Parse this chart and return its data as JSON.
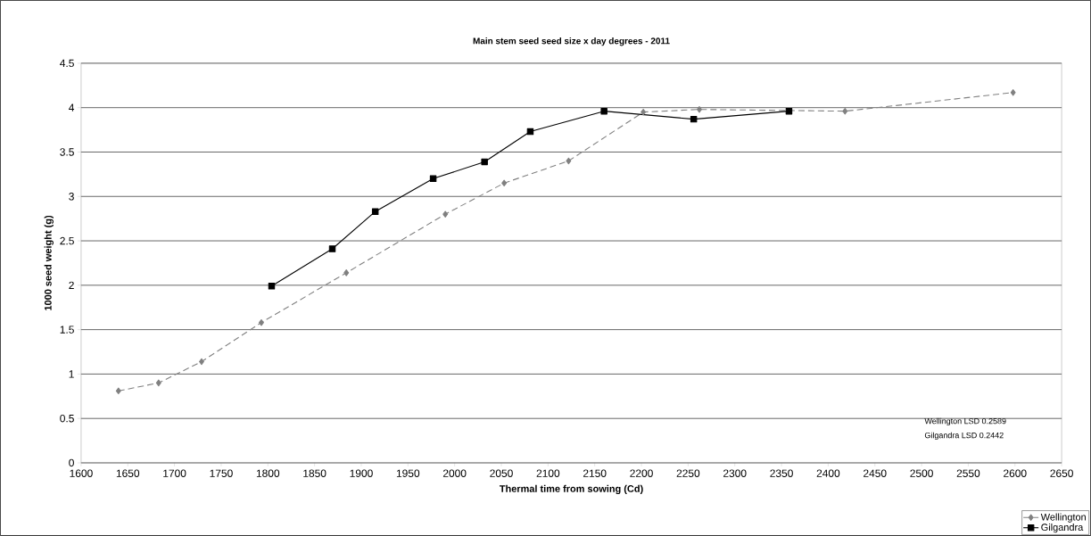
{
  "chart_data": {
    "type": "line",
    "title": "Main stem seed seed size x day degrees - 2011",
    "xlabel": "Thermal time from sowing (Cd)",
    "ylabel": "1000 seed weight (g)",
    "series": [
      {
        "name": "Wellington",
        "color": "#808080",
        "marker": "diamond",
        "line_style": "dashed",
        "x": [
          1640,
          1683,
          1729,
          1793,
          1884,
          1990,
          2053,
          2122,
          2202,
          2262,
          2418,
          2598
        ],
        "values": [
          0.81,
          0.9,
          1.14,
          1.58,
          2.14,
          2.8,
          3.15,
          3.4,
          3.95,
          3.98,
          3.96,
          4.17
        ]
      },
      {
        "name": "Gilgandra",
        "color": "#000000",
        "marker": "square",
        "line_style": "solid",
        "x": [
          1804,
          1869,
          1915,
          1977,
          2032,
          2081,
          2160,
          2256,
          2358
        ],
        "values": [
          1.99,
          2.41,
          2.83,
          3.2,
          3.39,
          3.73,
          3.96,
          3.87,
          3.96
        ]
      }
    ],
    "xlim": [
      1600,
      2650
    ],
    "ylim": [
      0,
      4.5
    ],
    "xticks": [
      1600,
      1650,
      1700,
      1750,
      1800,
      1850,
      1900,
      1950,
      2000,
      2050,
      2100,
      2150,
      2200,
      2250,
      2300,
      2350,
      2400,
      2450,
      2500,
      2550,
      2600,
      2650
    ],
    "yticks": [
      0,
      0.5,
      1,
      1.5,
      2,
      2.5,
      3,
      3.5,
      4,
      4.5
    ],
    "grid": "y",
    "legend": "bottom right",
    "annotations": [
      "Wellington LSD 0.2589",
      "Gilgandra LSD 0.2442"
    ]
  }
}
